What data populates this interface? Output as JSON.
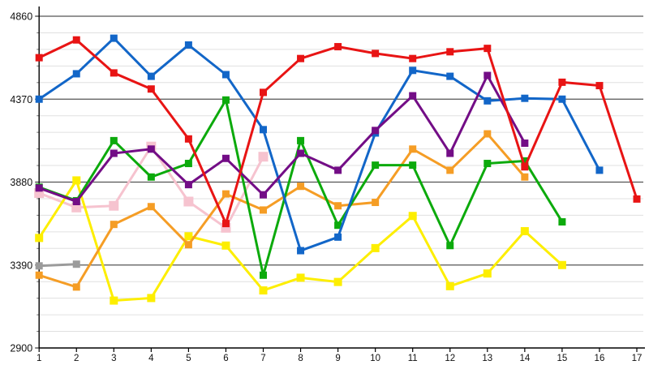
{
  "chart_data": {
    "type": "line",
    "title": "",
    "xlabel": "",
    "ylabel": "",
    "legend": "none",
    "grid": true,
    "x": [
      1,
      2,
      3,
      4,
      5,
      6,
      7,
      8,
      9,
      10,
      11,
      12,
      13,
      14,
      15,
      16,
      17
    ],
    "xlim": [
      1,
      17
    ],
    "ylim": [
      2900,
      4860
    ],
    "yticks_major": [
      2900,
      3390,
      3880,
      4370,
      4860
    ],
    "y_minor_step": 98,
    "xtick_labels": [
      "1",
      "2",
      "3",
      "4",
      "5",
      "6",
      "7",
      "8",
      "9",
      "10",
      "11",
      "12",
      "13",
      "14",
      "15",
      "16",
      "17"
    ],
    "ytick_labels": [
      "2900",
      "3390",
      "3880",
      "4370",
      "4860"
    ],
    "series": [
      {
        "name": "gray",
        "color": "#9b9b9b",
        "marker_size": 9,
        "values": [
          3385,
          3395,
          null,
          null,
          null,
          null,
          null,
          null,
          null,
          null,
          null,
          null,
          null,
          null,
          null,
          null,
          null
        ]
      },
      {
        "name": "pink",
        "color": "#f6c3cf",
        "marker_size": 12,
        "values": [
          3815,
          3730,
          3740,
          4090,
          3765,
          3610,
          4030,
          null,
          null,
          null,
          null,
          null,
          null,
          null,
          null,
          null,
          null
        ]
      },
      {
        "name": "yellow",
        "color": "#fdee00",
        "marker_size": 10,
        "values": [
          3550,
          3890,
          3180,
          3195,
          3560,
          3505,
          3240,
          3315,
          3290,
          3490,
          3680,
          3265,
          3340,
          3590,
          3390,
          null,
          null
        ]
      },
      {
        "name": "orange",
        "color": "#f59d25",
        "marker_size": 9,
        "values": [
          3330,
          3260,
          3630,
          3735,
          3510,
          3810,
          3715,
          3855,
          3740,
          3760,
          4075,
          3950,
          4165,
          3910,
          null,
          null,
          null
        ]
      },
      {
        "name": "green",
        "color": "#0caa0c",
        "marker_size": 9,
        "values": [
          3850,
          3770,
          4125,
          3910,
          3990,
          4365,
          3330,
          4125,
          3625,
          3980,
          3980,
          3505,
          3990,
          4005,
          3645,
          null,
          null
        ]
      },
      {
        "name": "blue",
        "color": "#1266c8",
        "marker_size": 9,
        "values": [
          4370,
          4520,
          4730,
          4505,
          4690,
          4515,
          4190,
          3475,
          3555,
          4170,
          4540,
          4505,
          4360,
          4375,
          4370,
          3950,
          null
        ]
      },
      {
        "name": "purple",
        "color": "#730d86",
        "marker_size": 9,
        "values": [
          3845,
          3765,
          4050,
          4075,
          3865,
          4020,
          3805,
          4050,
          3950,
          4185,
          4390,
          4050,
          4510,
          4110,
          null,
          null,
          null
        ]
      },
      {
        "name": "red",
        "color": "#e81414",
        "marker_size": 9,
        "values": [
          4615,
          4720,
          4525,
          4430,
          4135,
          3635,
          4410,
          4610,
          4680,
          4640,
          4610,
          4650,
          4670,
          3970,
          4470,
          4450,
          3780
        ]
      }
    ]
  }
}
